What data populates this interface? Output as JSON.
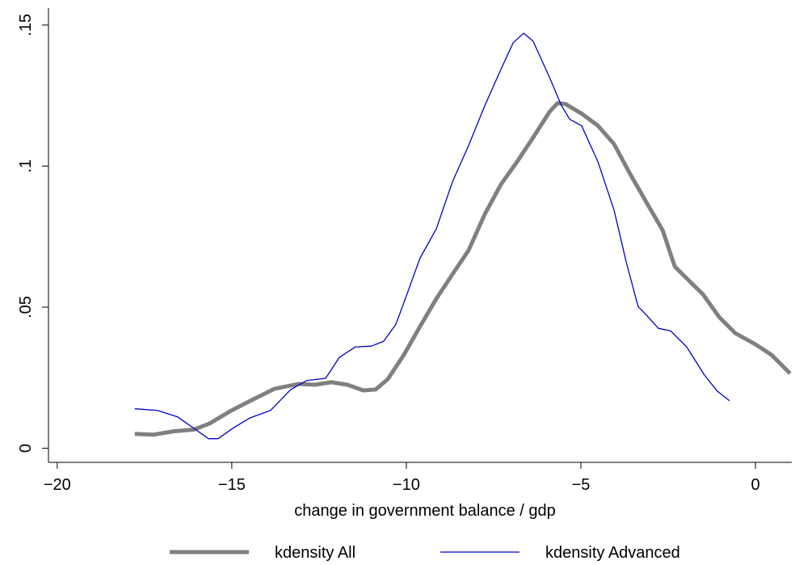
{
  "chart_data": {
    "type": "line",
    "x_label": "change in government balance / gdp",
    "xlim": [
      -20.25,
      1.04
    ],
    "ylim": [
      -0.005,
      0.156
    ],
    "xticks": [
      {
        "value": -20,
        "label": "−20"
      },
      {
        "value": -15,
        "label": "−15"
      },
      {
        "value": -10,
        "label": "−10"
      },
      {
        "value": -5,
        "label": "−5"
      },
      0
    ],
    "yticks": [
      0,
      {
        "value": 0.05,
        "label": ".05"
      },
      {
        "value": 0.1,
        "label": ".1"
      },
      {
        "value": 0.15,
        "label": ".15"
      }
    ],
    "legend": "bottom",
    "series": [
      {
        "name": "kdensity All",
        "color": "#808080",
        "x": [
          -17.78,
          -17.25,
          -16.67,
          -16.09,
          -15.63,
          -15.05,
          -14.47,
          -13.77,
          -13.08,
          -12.62,
          -12.15,
          -11.69,
          -11.23,
          -10.88,
          -10.53,
          -10.07,
          -9.61,
          -9.14,
          -8.68,
          -8.22,
          -7.75,
          -7.29,
          -6.83,
          -6.37,
          -5.9,
          -5.67,
          -5.44,
          -4.98,
          -4.51,
          -4.05,
          -3.59,
          -3.13,
          -2.66,
          -2.31,
          -1.97,
          -1.5,
          -1.04,
          -0.58,
          0,
          0.46,
          0.99
        ],
        "values": [
          0.0051,
          0.0048,
          0.006,
          0.0066,
          0.0088,
          0.0131,
          0.0168,
          0.0211,
          0.0228,
          0.0225,
          0.0234,
          0.0225,
          0.0205,
          0.0208,
          0.0245,
          0.0331,
          0.0431,
          0.053,
          0.0616,
          0.0701,
          0.083,
          0.0935,
          0.1015,
          0.1101,
          0.1192,
          0.1223,
          0.122,
          0.1186,
          0.1143,
          0.1078,
          0.0972,
          0.0873,
          0.0773,
          0.0644,
          0.0602,
          0.0545,
          0.0465,
          0.0408,
          0.0368,
          0.0331,
          0.0265
        ]
      },
      {
        "name": "kdensity Advanced",
        "color": "#0000cc",
        "x": [
          -17.78,
          -17.13,
          -16.55,
          -16.09,
          -15.67,
          -15.39,
          -14.93,
          -14.47,
          -13.89,
          -13.31,
          -12.85,
          -12.31,
          -11.92,
          -11.46,
          -11.0,
          -10.65,
          -10.3,
          -10.07,
          -9.61,
          -9.14,
          -8.68,
          -8.22,
          -7.75,
          -7.29,
          -6.94,
          -6.64,
          -6.37,
          -5.9,
          -5.56,
          -5.32,
          -4.98,
          -4.51,
          -4.05,
          -3.7,
          -3.36,
          -3.13,
          -2.78,
          -2.43,
          -1.97,
          -1.46,
          -1.09,
          -0.74
        ],
        "values": [
          0.014,
          0.0134,
          0.0111,
          0.0071,
          0.0034,
          0.0034,
          0.0074,
          0.0108,
          0.0134,
          0.0208,
          0.024,
          0.0248,
          0.0322,
          0.0359,
          0.0362,
          0.0379,
          0.0439,
          0.0516,
          0.0673,
          0.0778,
          0.0944,
          0.1072,
          0.1215,
          0.1343,
          0.1437,
          0.1471,
          0.1443,
          0.1315,
          0.1215,
          0.1166,
          0.1143,
          0.1015,
          0.0844,
          0.0659,
          0.0502,
          0.0473,
          0.0425,
          0.0416,
          0.0359,
          0.0259,
          0.0202,
          0.0168
        ]
      }
    ]
  }
}
